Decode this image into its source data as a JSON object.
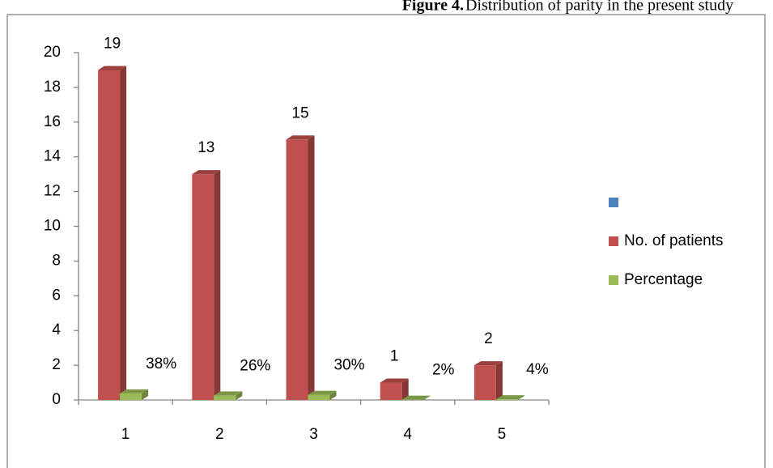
{
  "chart_data": {
    "type": "bar3d",
    "title_label": "Figure 4.",
    "title": "Distribution of parity in the present study",
    "categories": [
      "1",
      "2",
      "3",
      "4",
      "5"
    ],
    "series": [
      {
        "name": "No. of patients",
        "color": "#c0504d",
        "values": [
          19,
          13,
          15,
          1,
          2
        ]
      },
      {
        "name": "Percentage",
        "color": "#9bbb59",
        "values": [
          0.38,
          0.26,
          0.3,
          0.02,
          0.04
        ],
        "value_labels": [
          "38%",
          "26%",
          "30%",
          "2%",
          "4%"
        ]
      }
    ],
    "ylim": [
      0,
      20
    ],
    "yticks": [
      0,
      2,
      4,
      6,
      8,
      10,
      12,
      14,
      16,
      18,
      20
    ],
    "grid": false,
    "legend": "right"
  }
}
